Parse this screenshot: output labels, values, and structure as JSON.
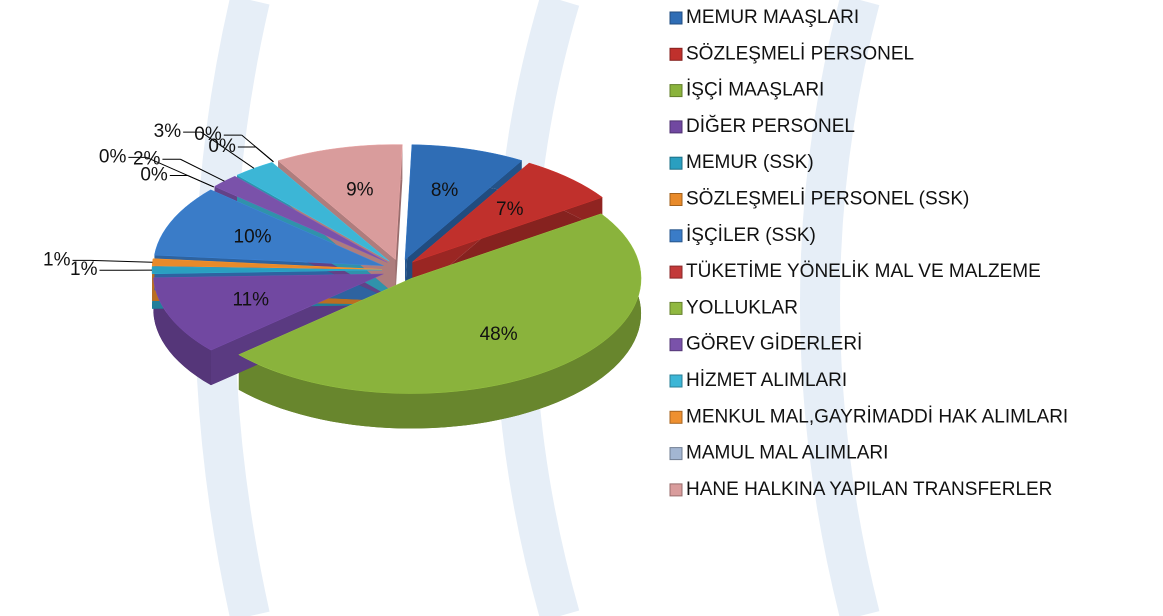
{
  "chart_data": {
    "type": "pie",
    "categories": [
      "MEMUR MAAŞLARI",
      "SÖZLEŞMELİ PERSONEL",
      "İŞÇİ MAAŞLARI",
      "DİĞER PERSONEL",
      "MEMUR (SSK)",
      "SÖZLEŞMELİ PERSONEL (SSK)",
      "İŞÇİLER (SSK)",
      "TÜKETİME YÖNELİK MAL VE MALZEME",
      "YOLLUKLAR",
      "GÖREV GİDERLERİ",
      "HİZMET ALIMLARI",
      "MENKUL MAL,GAYRİMADDİ HAK ALIMLARI",
      "MAMUL MAL ALIMLARI",
      "HANE HALKINA YAPILAN TRANSFERLER"
    ],
    "values": [
      8,
      7,
      48,
      11,
      1,
      1,
      10,
      0,
      0,
      2,
      3,
      0,
      0,
      9
    ],
    "value_labels": [
      "8%",
      "7%",
      "48%",
      "11%",
      "1%",
      "1%",
      "10%",
      "0%",
      "0%",
      "2%",
      "3%",
      "0%",
      "0%",
      "9%"
    ],
    "colors": [
      "#2f6db5",
      "#c0302c",
      "#8ab33c",
      "#7148a1",
      "#2a9fc0",
      "#e88a2a",
      "#3a7cc8",
      "#c33a3a",
      "#90b840",
      "#7a52aa",
      "#3cb6d6",
      "#ee9030",
      "#a3b6d2",
      "#d99c9c"
    ],
    "legend": "right"
  }
}
